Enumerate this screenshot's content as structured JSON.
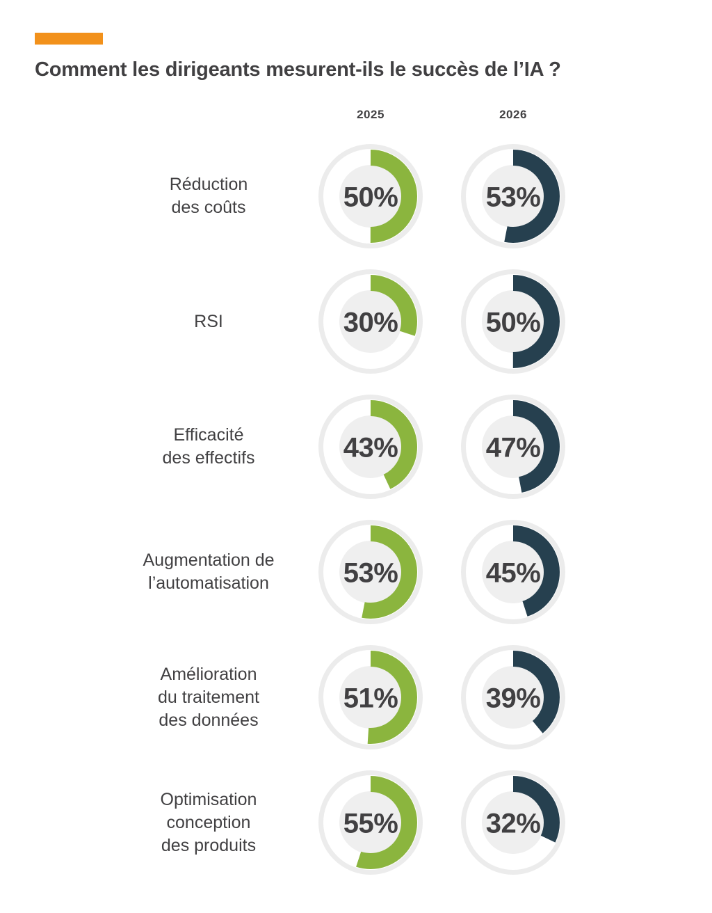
{
  "page": {
    "accent_color": "#F2911B",
    "background_color": "#FFFFFF",
    "text_color": "#414042"
  },
  "chart_data": {
    "type": "donut",
    "title": "Comment les dirigeants mesurent-ils le succès de l’IA ?",
    "column_headers": [
      "2025",
      "2026"
    ],
    "unit": "%",
    "range": [
      0,
      100
    ],
    "arc_start": "top",
    "direction": "clockwise",
    "categories": [
      "Réduction des coûts",
      "RSI",
      "Efficacité des effectifs",
      "Augmentation de l’automatisation",
      "Amélioration du traitement des données",
      "Optimisation conception des produits"
    ],
    "category_lines": [
      [
        "Réduction",
        "des coûts"
      ],
      [
        "RSI"
      ],
      [
        "Efficacité",
        "des effectifs"
      ],
      [
        "Augmentation de",
        "l’automatisation"
      ],
      [
        "Amélioration",
        "du traitement",
        "des données"
      ],
      [
        "Optimisation",
        "conception",
        "des produits"
      ]
    ],
    "series": [
      {
        "name": "2025",
        "color": "#8BB53E",
        "values": [
          50,
          30,
          43,
          53,
          51,
          55
        ]
      },
      {
        "name": "2026",
        "color": "#26404F",
        "values": [
          53,
          50,
          47,
          45,
          39,
          32
        ]
      }
    ],
    "ring_style": {
      "outer_ring_color": "#ECECEC",
      "track_color": "#FFFFFF",
      "center_disc_color": "#EFEFEF",
      "value_text_color": "#414042"
    }
  }
}
